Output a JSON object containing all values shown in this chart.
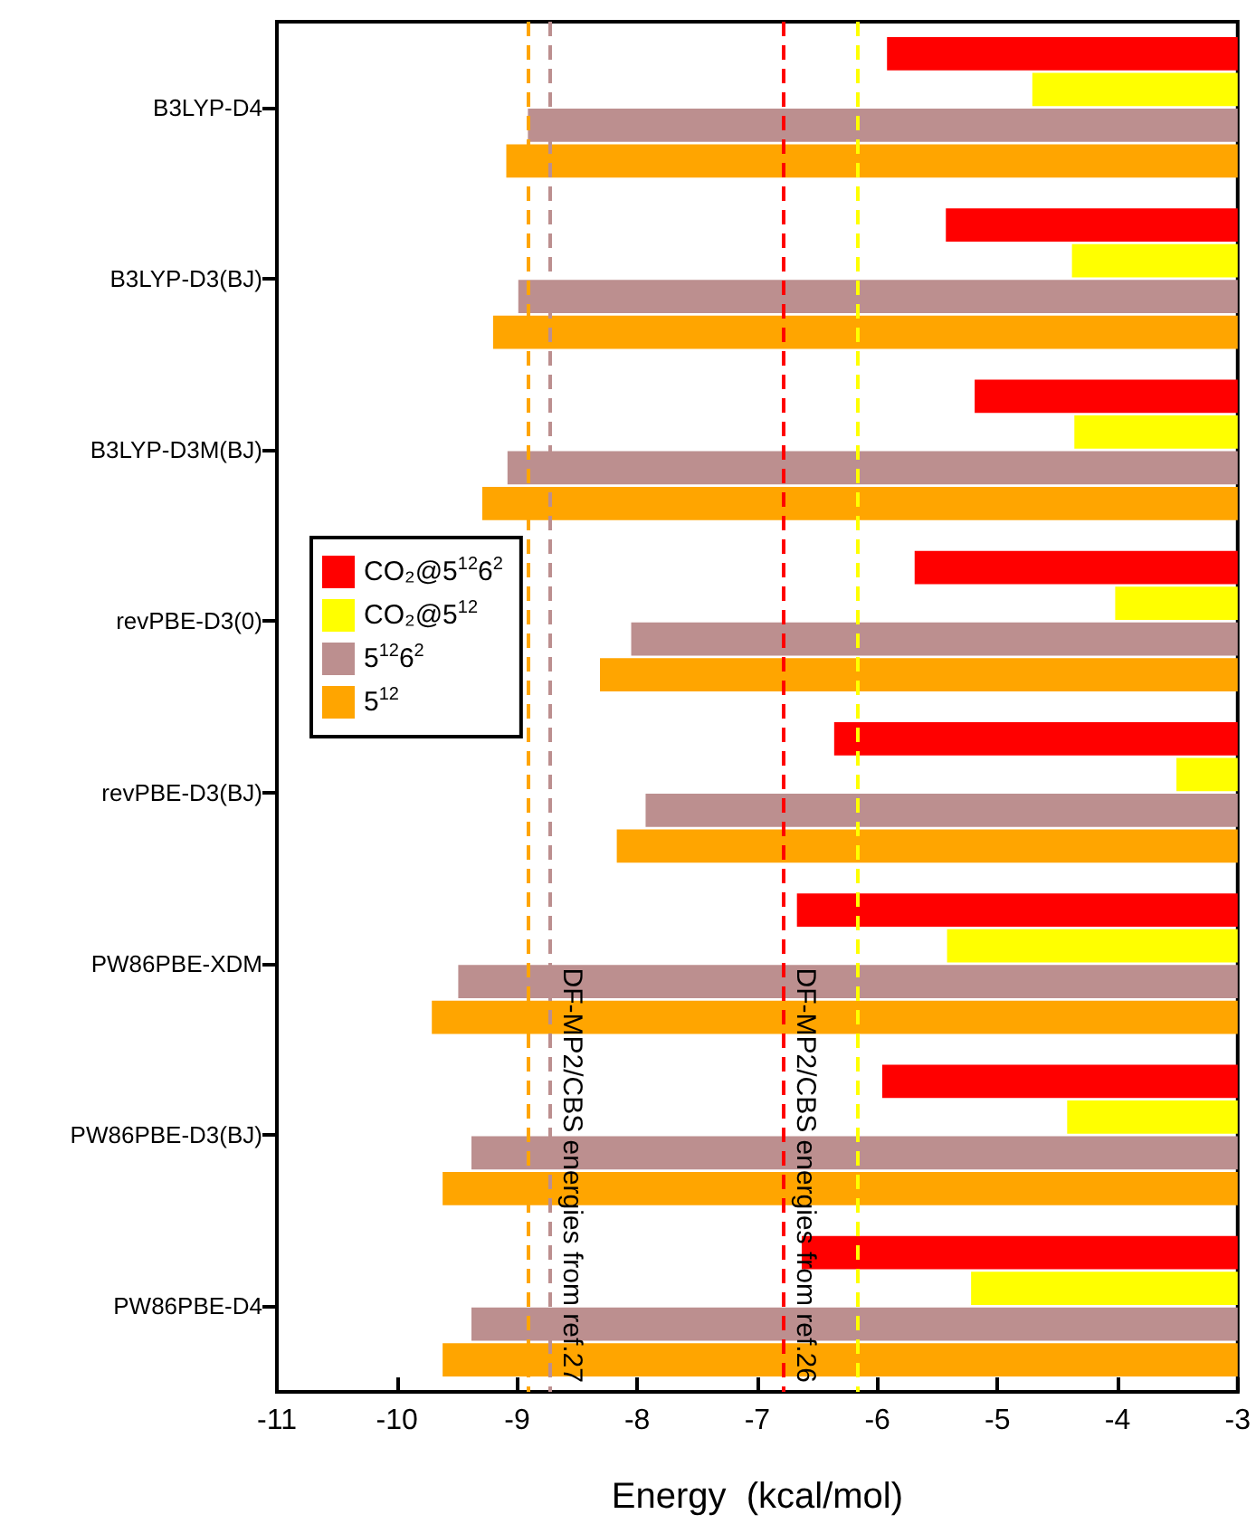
{
  "chart_data": {
    "type": "bar",
    "orientation": "horizontal",
    "xlabel": "Energy  (kcal/mol)",
    "categories": [
      "B3LYP-D4",
      "B3LYP-D3(BJ)",
      "B3LYP-D3M(BJ)",
      "revPBE-D3(0)",
      "revPBE-D3(BJ)",
      "PW86PBE-XDM",
      "PW86PBE-D3(BJ)",
      "PW86PBE-D4"
    ],
    "series": [
      {
        "name": "CO₂@5$^{12}$6$^{2}$",
        "color": "#ff0000",
        "values": [
          -5.92,
          -5.43,
          -5.19,
          -5.69,
          -6.36,
          -6.67,
          -5.96,
          -6.63
        ]
      },
      {
        "name": "CO₂@5$^{12}$",
        "color": "#ffff00",
        "values": [
          -4.71,
          -4.38,
          -4.36,
          -4.02,
          -3.51,
          -5.42,
          -4.42,
          -5.22
        ]
      },
      {
        "name": "5$^{12}$6$^{2}$",
        "color": "#bc8f8f",
        "values": [
          -8.91,
          -8.99,
          -9.08,
          -8.05,
          -7.93,
          -9.49,
          -9.38,
          -9.38
        ]
      },
      {
        "name": "5$^{12}$",
        "color": "#ffa500",
        "values": [
          -9.09,
          -9.2,
          -9.29,
          -8.31,
          -8.17,
          -9.71,
          -9.62,
          -9.62
        ]
      }
    ],
    "xlim": [
      -11,
      -3
    ],
    "xticks": [
      -11,
      -10,
      -9,
      -8,
      -7,
      -6,
      -5,
      -4,
      -3
    ],
    "ref_lines": [
      {
        "axis": "x",
        "value": -8.91,
        "color": "#ffa500",
        "line_style": "dashed"
      },
      {
        "axis": "x",
        "value": -8.73,
        "color": "#bc8f8f",
        "line_style": "dashed",
        "label": "DF-MP2/CBS energies from ref.27"
      },
      {
        "axis": "x",
        "value": -6.79,
        "color": "#ff0000",
        "line_style": "dashed",
        "label": "DF-MP2/CBS energies from ref.26"
      },
      {
        "axis": "x",
        "value": -6.16,
        "color": "#ffff00",
        "line_style": "dashed"
      }
    ],
    "legend": "left",
    "grid": false
  }
}
